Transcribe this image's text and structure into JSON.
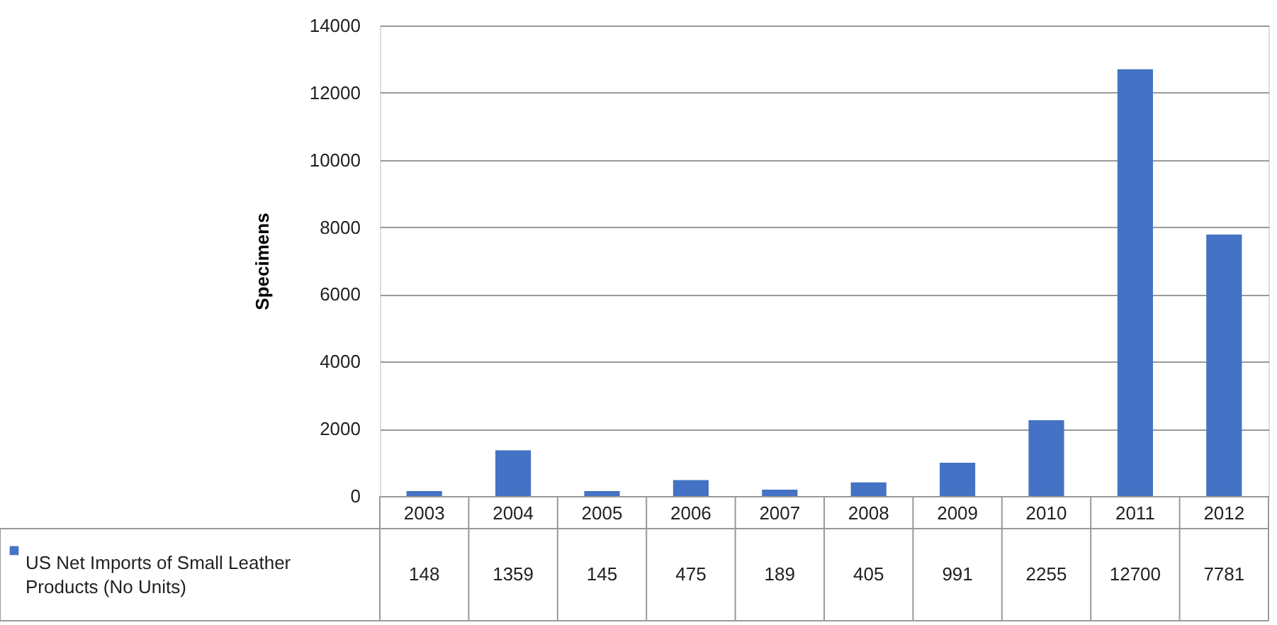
{
  "chart_data": {
    "type": "bar",
    "ylabel": "Specimens",
    "categories": [
      "2003",
      "2004",
      "2005",
      "2006",
      "2007",
      "2008",
      "2009",
      "2010",
      "2011",
      "2012"
    ],
    "series": [
      {
        "name": "US Net Imports of Small Leather Products (No Units)",
        "color": "#4472c4",
        "values": [
          148,
          1359,
          145,
          475,
          189,
          405,
          991,
          2255,
          12700,
          7781
        ]
      }
    ],
    "ylim": [
      0,
      14000
    ],
    "yticks": [
      0,
      2000,
      4000,
      6000,
      8000,
      10000,
      12000,
      14000
    ],
    "grid": "y",
    "legend": "bottom",
    "data_labels": true
  }
}
